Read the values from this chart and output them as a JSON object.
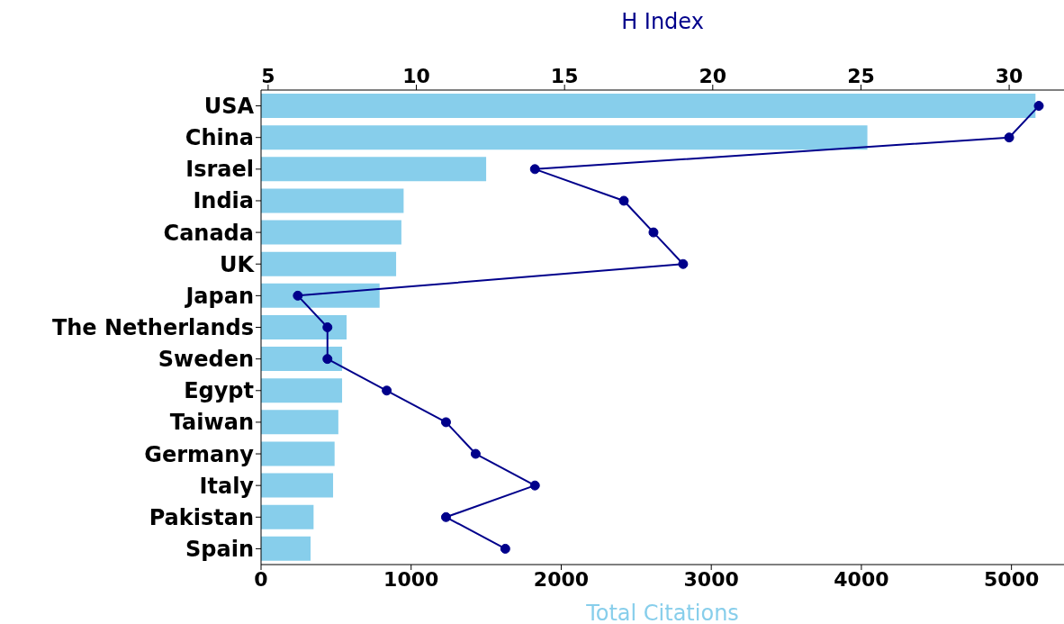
{
  "chart_data": {
    "type": "bar",
    "orientation": "horizontal",
    "categories": [
      "USA",
      "China",
      "Israel",
      "India",
      "Canada",
      "UK",
      "Japan",
      "The Netherlands",
      "Sweden",
      "Egypt",
      "Taiwan",
      "Germany",
      "Italy",
      "Pakistan",
      "Spain"
    ],
    "series": [
      {
        "color": "#87ceeb",
        "values": [
          5160,
          4040,
          1500,
          950,
          935,
          900,
          790,
          570,
          540,
          540,
          515,
          490,
          480,
          350,
          330
        ]
      },
      {
        "type": "line",
        "axis": "x2",
        "color": "#00008b",
        "marker": "circle",
        "values": [
          31,
          30,
          14,
          17,
          18,
          19,
          6,
          7,
          7,
          9,
          11,
          12,
          14,
          11,
          13
        ]
      }
    ],
    "xlim": [
      0,
      5350
    ],
    "xticks": [
      0,
      1000,
      2000,
      3000,
      4000,
      5000
    ],
    "x2lim": [
      4.76,
      31.85
    ],
    "x2ticks": [
      5,
      10,
      15,
      20,
      25,
      30
    ],
    "xlabel": "Total Citations",
    "x2label": "H Index",
    "grid": false,
    "legend": false
  }
}
